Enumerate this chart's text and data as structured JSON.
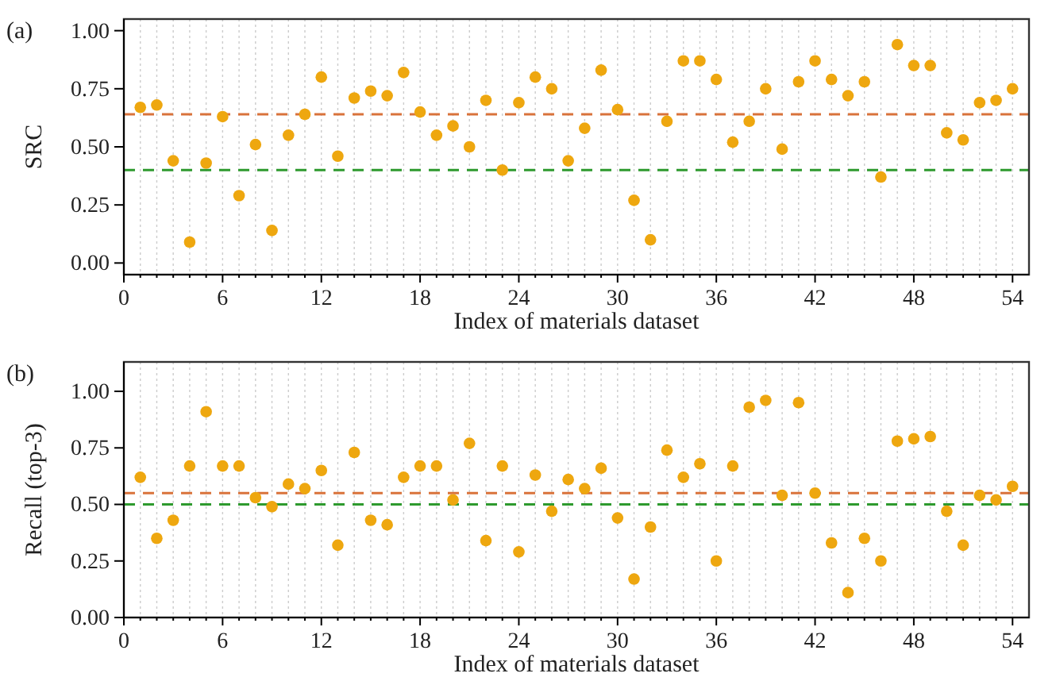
{
  "chart_data": [
    {
      "type": "scatter",
      "annotations": [
        "(a)"
      ],
      "xlabel": "Index of materials dataset",
      "ylabel": "SRC",
      "x": [
        1,
        2,
        3,
        4,
        5,
        6,
        7,
        8,
        9,
        10,
        11,
        12,
        13,
        14,
        15,
        16,
        17,
        18,
        19,
        20,
        21,
        22,
        23,
        24,
        25,
        26,
        27,
        28,
        29,
        30,
        31,
        32,
        33,
        34,
        35,
        36,
        37,
        38,
        39,
        40,
        41,
        42,
        43,
        44,
        45,
        46,
        47,
        48,
        49,
        50,
        51,
        52,
        53,
        54
      ],
      "series": [
        {
          "color": "#eea70f",
          "values": [
            0.67,
            0.68,
            0.44,
            0.09,
            0.43,
            0.63,
            0.29,
            0.51,
            0.14,
            0.55,
            0.64,
            0.8,
            0.46,
            0.71,
            0.74,
            0.72,
            0.82,
            0.65,
            0.55,
            0.59,
            0.5,
            0.7,
            0.4,
            0.69,
            0.8,
            0.75,
            0.44,
            0.58,
            0.83,
            0.66,
            0.27,
            0.1,
            0.61,
            0.87,
            0.87,
            0.79,
            0.52,
            0.61,
            0.75,
            0.49,
            0.78,
            0.87,
            0.79,
            0.72,
            0.78,
            0.37,
            0.94,
            0.85,
            0.85,
            0.56,
            0.53,
            0.69,
            0.7,
            0.75
          ]
        }
      ],
      "xlim": [
        0,
        55
      ],
      "xticks": [
        0,
        {
          "value": 1,
          "label": null
        },
        {
          "value": 2,
          "label": null
        },
        {
          "value": 3,
          "label": null
        },
        {
          "value": 4,
          "label": null
        },
        {
          "value": 5,
          "label": null
        },
        6,
        {
          "value": 7,
          "label": null
        },
        {
          "value": 8,
          "label": null
        },
        {
          "value": 9,
          "label": null
        },
        {
          "value": 10,
          "label": null
        },
        {
          "value": 11,
          "label": null
        },
        12,
        {
          "value": 13,
          "label": null
        },
        {
          "value": 14,
          "label": null
        },
        {
          "value": 15,
          "label": null
        },
        {
          "value": 16,
          "label": null
        },
        {
          "value": 17,
          "label": null
        },
        18,
        {
          "value": 19,
          "label": null
        },
        {
          "value": 20,
          "label": null
        },
        {
          "value": 21,
          "label": null
        },
        {
          "value": 22,
          "label": null
        },
        {
          "value": 23,
          "label": null
        },
        24,
        {
          "value": 25,
          "label": null
        },
        {
          "value": 26,
          "label": null
        },
        {
          "value": 27,
          "label": null
        },
        {
          "value": 28,
          "label": null
        },
        {
          "value": 29,
          "label": null
        },
        30,
        {
          "value": 31,
          "label": null
        },
        {
          "value": 32,
          "label": null
        },
        {
          "value": 33,
          "label": null
        },
        {
          "value": 34,
          "label": null
        },
        {
          "value": 35,
          "label": null
        },
        36,
        {
          "value": 37,
          "label": null
        },
        {
          "value": 38,
          "label": null
        },
        {
          "value": 39,
          "label": null
        },
        {
          "value": 40,
          "label": null
        },
        {
          "value": 41,
          "label": null
        },
        42,
        {
          "value": 43,
          "label": null
        },
        {
          "value": 44,
          "label": null
        },
        {
          "value": 45,
          "label": null
        },
        {
          "value": 46,
          "label": null
        },
        {
          "value": 47,
          "label": null
        },
        48,
        {
          "value": 49,
          "label": null
        },
        {
          "value": 50,
          "label": null
        },
        {
          "value": 51,
          "label": null
        },
        {
          "value": 52,
          "label": null
        },
        {
          "value": 53,
          "label": null
        },
        54
      ],
      "ylim": [
        -0.05,
        1.05
      ],
      "yticks": [
        {
          "value": 0,
          "label": "0.00"
        },
        {
          "value": 0.25,
          "label": "0.25"
        },
        {
          "value": 0.5,
          "label": "0.50"
        },
        {
          "value": 0.75,
          "label": "0.75"
        },
        {
          "value": 1,
          "label": "1.00"
        }
      ],
      "ref_lines": [
        {
          "axis": "y",
          "value": 0.64,
          "color": "#d9733b",
          "line_style": "dashed"
        },
        {
          "axis": "y",
          "value": 0.4,
          "color": "#2e9a2e",
          "line_style": "dashed"
        }
      ],
      "grid": "x",
      "marker": "circle"
    },
    {
      "type": "scatter",
      "annotations": [
        "(b)"
      ],
      "xlabel": "Index of materials dataset",
      "ylabel": "Recall (top-3)",
      "x": [
        1,
        2,
        3,
        4,
        5,
        6,
        7,
        8,
        9,
        10,
        11,
        12,
        13,
        14,
        15,
        16,
        17,
        18,
        19,
        20,
        21,
        22,
        23,
        24,
        25,
        26,
        27,
        28,
        29,
        30,
        31,
        32,
        33,
        34,
        35,
        36,
        37,
        38,
        39,
        40,
        41,
        42,
        43,
        44,
        45,
        46,
        47,
        48,
        49,
        50,
        51,
        52,
        53,
        54
      ],
      "series": [
        {
          "color": "#eea70f",
          "values": [
            0.62,
            0.35,
            0.43,
            0.67,
            0.91,
            0.67,
            0.67,
            0.53,
            0.49,
            0.59,
            0.57,
            0.65,
            0.32,
            0.73,
            0.43,
            0.41,
            0.62,
            0.67,
            0.67,
            0.52,
            0.77,
            0.34,
            0.67,
            0.29,
            0.63,
            0.47,
            0.61,
            0.57,
            0.66,
            0.44,
            0.17,
            0.4,
            0.74,
            0.62,
            0.68,
            0.25,
            0.67,
            0.93,
            0.96,
            0.54,
            0.95,
            0.55,
            0.33,
            0.11,
            0.35,
            0.25,
            0.78,
            0.79,
            0.8,
            0.47,
            0.32,
            0.54,
            0.52,
            0.58
          ]
        }
      ],
      "xlim": [
        0,
        55
      ],
      "xticks": [
        0,
        {
          "value": 1,
          "label": null
        },
        {
          "value": 2,
          "label": null
        },
        {
          "value": 3,
          "label": null
        },
        {
          "value": 4,
          "label": null
        },
        {
          "value": 5,
          "label": null
        },
        6,
        {
          "value": 7,
          "label": null
        },
        {
          "value": 8,
          "label": null
        },
        {
          "value": 9,
          "label": null
        },
        {
          "value": 10,
          "label": null
        },
        {
          "value": 11,
          "label": null
        },
        12,
        {
          "value": 13,
          "label": null
        },
        {
          "value": 14,
          "label": null
        },
        {
          "value": 15,
          "label": null
        },
        {
          "value": 16,
          "label": null
        },
        {
          "value": 17,
          "label": null
        },
        18,
        {
          "value": 19,
          "label": null
        },
        {
          "value": 20,
          "label": null
        },
        {
          "value": 21,
          "label": null
        },
        {
          "value": 22,
          "label": null
        },
        {
          "value": 23,
          "label": null
        },
        24,
        {
          "value": 25,
          "label": null
        },
        {
          "value": 26,
          "label": null
        },
        {
          "value": 27,
          "label": null
        },
        {
          "value": 28,
          "label": null
        },
        {
          "value": 29,
          "label": null
        },
        30,
        {
          "value": 31,
          "label": null
        },
        {
          "value": 32,
          "label": null
        },
        {
          "value": 33,
          "label": null
        },
        {
          "value": 34,
          "label": null
        },
        {
          "value": 35,
          "label": null
        },
        36,
        {
          "value": 37,
          "label": null
        },
        {
          "value": 38,
          "label": null
        },
        {
          "value": 39,
          "label": null
        },
        {
          "value": 40,
          "label": null
        },
        {
          "value": 41,
          "label": null
        },
        42,
        {
          "value": 43,
          "label": null
        },
        {
          "value": 44,
          "label": null
        },
        {
          "value": 45,
          "label": null
        },
        {
          "value": 46,
          "label": null
        },
        {
          "value": 47,
          "label": null
        },
        48,
        {
          "value": 49,
          "label": null
        },
        {
          "value": 50,
          "label": null
        },
        {
          "value": 51,
          "label": null
        },
        {
          "value": 52,
          "label": null
        },
        {
          "value": 53,
          "label": null
        },
        54
      ],
      "ylim": [
        0,
        1.13
      ],
      "yticks": [
        {
          "value": 0,
          "label": "0.00"
        },
        {
          "value": 0.25,
          "label": "0.25"
        },
        {
          "value": 0.5,
          "label": "0.50"
        },
        {
          "value": 0.75,
          "label": "0.75"
        },
        {
          "value": 1,
          "label": "1.00"
        }
      ],
      "ref_lines": [
        {
          "axis": "y",
          "value": 0.55,
          "color": "#d9733b",
          "line_style": "dashed"
        },
        {
          "axis": "y",
          "value": 0.5,
          "color": "#2e9a2e",
          "line_style": "dashed"
        }
      ],
      "grid": "x",
      "marker": "circle"
    }
  ]
}
